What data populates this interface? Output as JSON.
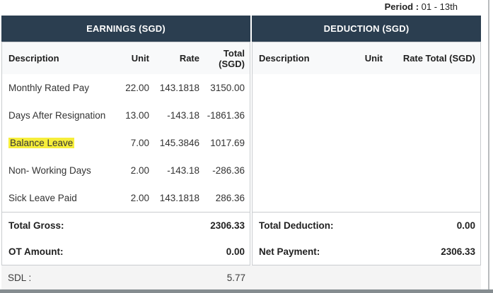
{
  "period": {
    "label": "Period :",
    "value": "01 - 13th"
  },
  "earnings": {
    "title": "EARNINGS (SGD)",
    "columns": {
      "description": "Description",
      "unit": "Unit",
      "rate": "Rate",
      "total": "Total (SGD)"
    },
    "rows": [
      {
        "description": "Monthly Rated Pay",
        "unit": "22.00",
        "rate": "143.1818",
        "total": "3150.00",
        "highlight": false
      },
      {
        "description": "Days After Resignation",
        "unit": "13.00",
        "rate": "-143.18",
        "total": "-1861.36",
        "highlight": false
      },
      {
        "description": "Balance Leave",
        "unit": "7.00",
        "rate": "145.3846",
        "total": "1017.69",
        "highlight": true
      },
      {
        "description": "Non- Working Days",
        "unit": "2.00",
        "rate": "-143.18",
        "total": "-286.36",
        "highlight": false
      },
      {
        "description": "Sick Leave Paid",
        "unit": "2.00",
        "rate": "143.1818",
        "total": "286.36",
        "highlight": false
      }
    ],
    "totals": [
      {
        "label": "Total Gross:",
        "value": "2306.33"
      },
      {
        "label": "OT Amount:",
        "value": "0.00"
      }
    ]
  },
  "deduction": {
    "title": "DEDUCTION (SGD)",
    "columns": {
      "description": "Description",
      "unit": "Unit",
      "rate": "Rate",
      "total": "Total (SGD)"
    },
    "rows": [],
    "totals": [
      {
        "label": "Total Deduction:",
        "value": "0.00"
      },
      {
        "label": "Net Payment:",
        "value": "2306.33"
      }
    ]
  },
  "footer": {
    "label": "SDL :",
    "value": "5.77"
  },
  "colors": {
    "header_bg": "#2b3e50",
    "highlight": "#f6ee3b"
  }
}
